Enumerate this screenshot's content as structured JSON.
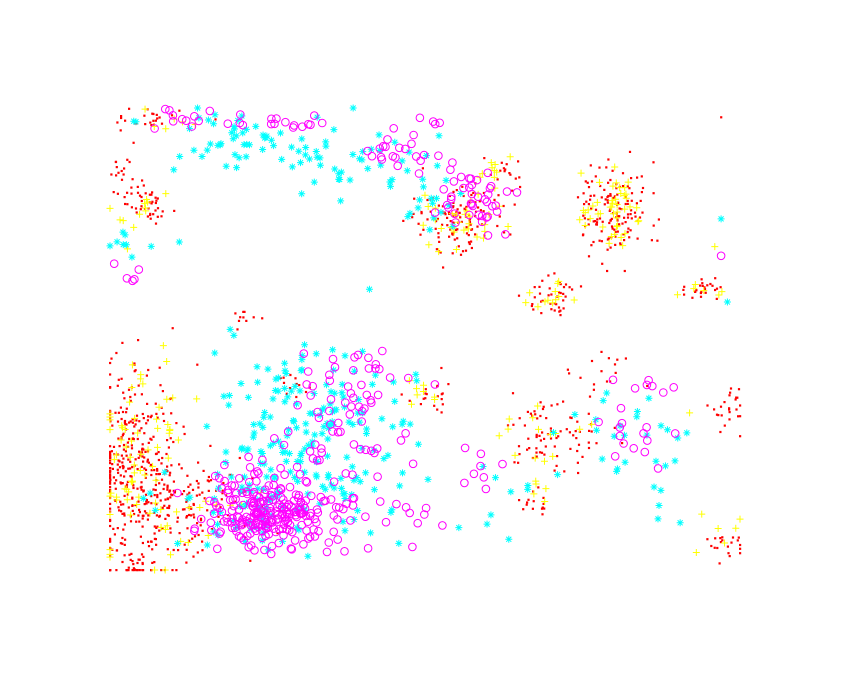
{
  "chart_data": {
    "type": "scatter",
    "title": "",
    "xlabel": "",
    "ylabel": "",
    "axes_visible": false,
    "grid": false,
    "legend": "none",
    "xlim": [
      0,
      100
    ],
    "ylim": [
      0,
      100
    ],
    "series": [
      {
        "marker": "point",
        "color": "#ff0000",
        "clusters": [
          {
            "x": 4,
            "y": 20,
            "sx": 3.5,
            "sy": 12,
            "n": 380
          },
          {
            "x": 13,
            "y": 13,
            "sx": 5,
            "sy": 5,
            "n": 120
          },
          {
            "x": 55,
            "y": 76,
            "sx": 4,
            "sy": 3.5,
            "n": 120
          },
          {
            "x": 80,
            "y": 78,
            "sx": 2.5,
            "sy": 5,
            "n": 140
          },
          {
            "x": 70,
            "y": 59,
            "sx": 2,
            "sy": 2,
            "n": 40
          },
          {
            "x": 6,
            "y": 79,
            "sx": 2,
            "sy": 2.5,
            "n": 40
          },
          {
            "x": 2,
            "y": 88,
            "sx": 1.2,
            "sy": 4,
            "n": 20
          },
          {
            "x": 68,
            "y": 30,
            "sx": 3.5,
            "sy": 5,
            "n": 50
          },
          {
            "x": 94,
            "y": 61,
            "sx": 2,
            "sy": 1.2,
            "n": 25
          },
          {
            "x": 98,
            "y": 35,
            "sx": 1.2,
            "sy": 3,
            "n": 25
          },
          {
            "x": 98,
            "y": 5,
            "sx": 1.2,
            "sy": 2,
            "n": 20
          },
          {
            "x": 51,
            "y": 38,
            "sx": 2,
            "sy": 2.5,
            "n": 20
          },
          {
            "x": 67,
            "y": 15,
            "sx": 1.5,
            "sy": 2,
            "n": 15
          },
          {
            "x": 7,
            "y": 98,
            "sx": 4,
            "sy": 1,
            "n": 25
          },
          {
            "x": 29,
            "y": 40,
            "sx": 2,
            "sy": 1.2,
            "n": 12
          },
          {
            "x": 21,
            "y": 54,
            "sx": 1.2,
            "sy": 1,
            "n": 10
          },
          {
            "x": 74,
            "y": 28,
            "sx": 2.5,
            "sy": 2.5,
            "n": 30
          },
          {
            "x": 78,
            "y": 43,
            "sx": 2.5,
            "sy": 2.5,
            "n": 15
          },
          {
            "x": 62,
            "y": 86,
            "sx": 1.5,
            "sy": 2,
            "n": 15
          }
        ]
      },
      {
        "marker": "plus",
        "color": "#ffff00",
        "clusters": [
          {
            "x": 5,
            "y": 25,
            "sx": 3.5,
            "sy": 12,
            "n": 70
          },
          {
            "x": 80,
            "y": 78,
            "sx": 2.5,
            "sy": 4.5,
            "n": 45
          },
          {
            "x": 55,
            "y": 76,
            "sx": 4,
            "sy": 3.5,
            "n": 30
          },
          {
            "x": 62,
            "y": 86,
            "sx": 1.5,
            "sy": 2,
            "n": 10
          },
          {
            "x": 70,
            "y": 59,
            "sx": 2,
            "sy": 2,
            "n": 12
          },
          {
            "x": 69,
            "y": 28,
            "sx": 3,
            "sy": 4,
            "n": 14
          },
          {
            "x": 5,
            "y": 78,
            "sx": 2,
            "sy": 2.5,
            "n": 12
          },
          {
            "x": 9,
            "y": 97,
            "sx": 4,
            "sy": 1.2,
            "n": 6
          },
          {
            "x": 50,
            "y": 38,
            "sx": 2,
            "sy": 2,
            "n": 8
          },
          {
            "x": 95,
            "y": 61,
            "sx": 2,
            "sy": 1.2,
            "n": 6
          },
          {
            "x": 95,
            "y": 10,
            "sx": 4,
            "sy": 3,
            "n": 6
          },
          {
            "x": 16,
            "y": 12,
            "sx": 4,
            "sy": 4,
            "n": 12
          },
          {
            "x": 67,
            "y": 15,
            "sx": 1.5,
            "sy": 2,
            "n": 5
          }
        ]
      },
      {
        "marker": "asterisk",
        "color": "#00ffff",
        "clusters": [
          {
            "x": 30,
            "y": 31,
            "sx": 8,
            "sy": 9,
            "n": 160
          },
          {
            "x": 22,
            "y": 93,
            "sx": 8,
            "sy": 3.5,
            "n": 60
          },
          {
            "x": 42,
            "y": 88,
            "sx": 6,
            "sy": 4,
            "n": 30
          },
          {
            "x": 23,
            "y": 15,
            "sx": 7,
            "sy": 6,
            "n": 60
          },
          {
            "x": 40,
            "y": 15,
            "sx": 4,
            "sy": 4,
            "n": 15
          },
          {
            "x": 80,
            "y": 30,
            "sx": 6,
            "sy": 6,
            "n": 25
          },
          {
            "x": 4,
            "y": 70,
            "sx": 2,
            "sy": 3,
            "n": 8
          },
          {
            "x": 59,
            "y": 18,
            "sx": 5,
            "sy": 5,
            "n": 10
          },
          {
            "x": 52,
            "y": 79,
            "sx": 3,
            "sy": 3,
            "n": 15
          },
          {
            "x": 91,
            "y": 13,
            "sx": 3,
            "sy": 4,
            "n": 5
          }
        ]
      },
      {
        "marker": "circle",
        "color": "#ff00ff",
        "clusters": [
          {
            "x": 26,
            "y": 13,
            "sx": 5.5,
            "sy": 4,
            "n": 250
          },
          {
            "x": 38,
            "y": 35,
            "sx": 4.5,
            "sy": 7,
            "n": 65
          },
          {
            "x": 57,
            "y": 80,
            "sx": 3,
            "sy": 3.5,
            "n": 40
          },
          {
            "x": 12,
            "y": 97,
            "sx": 3,
            "sy": 2,
            "n": 12
          },
          {
            "x": 30,
            "y": 97,
            "sx": 5,
            "sy": 1.2,
            "n": 15
          },
          {
            "x": 44,
            "y": 90,
            "sx": 5,
            "sy": 2.5,
            "n": 22
          },
          {
            "x": 3,
            "y": 64,
            "sx": 1,
            "sy": 1.5,
            "n": 5
          },
          {
            "x": 45,
            "y": 12,
            "sx": 3,
            "sy": 1.5,
            "n": 10
          },
          {
            "x": 82,
            "y": 30,
            "sx": 3,
            "sy": 4,
            "n": 15
          },
          {
            "x": 60,
            "y": 22,
            "sx": 2,
            "sy": 3,
            "n": 8
          },
          {
            "x": 88,
            "y": 40,
            "sx": 2,
            "sy": 1,
            "n": 5
          },
          {
            "x": 52,
            "y": 97,
            "sx": 2,
            "sy": 1,
            "n": 5
          }
        ]
      }
    ],
    "points": [
      {
        "x": 97,
        "y": 98,
        "series": 0
      },
      {
        "x": 98,
        "y": 58,
        "series": 2
      },
      {
        "x": 97,
        "y": 76,
        "series": 2
      },
      {
        "x": 97,
        "y": 68,
        "series": 3
      },
      {
        "x": 96,
        "y": 70,
        "series": 1
      },
      {
        "x": 48,
        "y": 5,
        "series": 3
      },
      {
        "x": 1,
        "y": 47,
        "series": 0
      },
      {
        "x": 11,
        "y": 71,
        "series": 2
      },
      {
        "x": 87,
        "y": 22,
        "series": 3
      },
      {
        "x": 92,
        "y": 34,
        "series": 1
      }
    ]
  }
}
